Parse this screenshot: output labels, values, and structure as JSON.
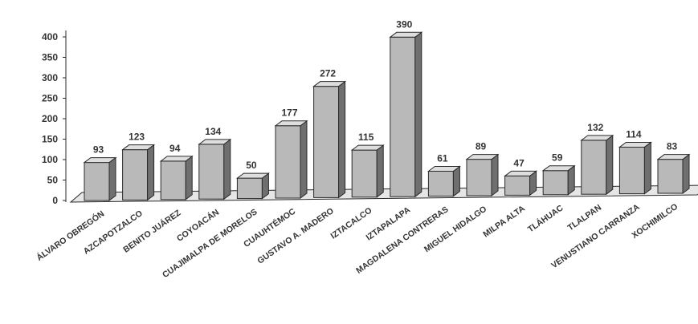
{
  "chart_data": {
    "type": "bar",
    "categories": [
      "ÁLVARO OBREGÓN",
      "AZCAPOTZALCO",
      "BENITO JUÁREZ",
      "COYOACÁN",
      "CUAJIMALPA DE MORELOS",
      "CUAUHTÉMOC",
      "GUSTAVO A. MADERO",
      "IZTACALCO",
      "IZTAPALAPA",
      "MAGDALENA CONTRERAS",
      "MIGUEL HIDALGO",
      "MILPA ALTA",
      "TLÁHUAC",
      "TLALPAN",
      "VENUSTIANO CARRANZA",
      "XOCHIMILCO"
    ],
    "values": [
      93,
      123,
      94,
      134,
      50,
      177,
      272,
      115,
      390,
      61,
      89,
      47,
      59,
      132,
      114,
      83
    ],
    "title": "",
    "xlabel": "",
    "ylabel": "",
    "ylim": [
      0,
      400
    ],
    "yticks": [
      0,
      50,
      100,
      150,
      200,
      250,
      300,
      350,
      400
    ],
    "grid": false,
    "style": "3d-bars",
    "colors": {
      "bar_front": "#b9b9b9",
      "bar_side": "#6f6f6f",
      "bar_top": "#dedede",
      "floor": "#e6e6e6",
      "outline": "#2a2a2a"
    }
  }
}
